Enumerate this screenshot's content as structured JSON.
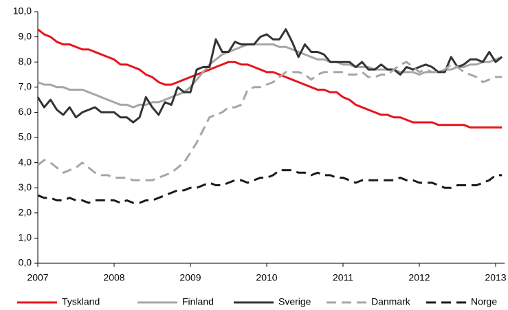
{
  "chart_data": {
    "type": "line",
    "categories": [
      "2007",
      null,
      null,
      null,
      null,
      null,
      null,
      null,
      null,
      null,
      null,
      null,
      "2008",
      null,
      null,
      null,
      null,
      null,
      null,
      null,
      null,
      null,
      null,
      null,
      "2009",
      null,
      null,
      null,
      null,
      null,
      null,
      null,
      null,
      null,
      null,
      null,
      "2010",
      null,
      null,
      null,
      null,
      null,
      null,
      null,
      null,
      null,
      null,
      null,
      "2011",
      null,
      null,
      null,
      null,
      null,
      null,
      null,
      null,
      null,
      null,
      null,
      "2012",
      null,
      null,
      null,
      null,
      null,
      null,
      null,
      null,
      null,
      null,
      null,
      "2013",
      null
    ],
    "series": [
      {
        "name": "Tyskland",
        "color": "#e8141b",
        "dashed": false,
        "values": [
          9.3,
          9.1,
          9.0,
          8.8,
          8.7,
          8.7,
          8.6,
          8.5,
          8.5,
          8.4,
          8.3,
          8.2,
          8.1,
          7.9,
          7.9,
          7.8,
          7.7,
          7.5,
          7.4,
          7.2,
          7.1,
          7.1,
          7.2,
          7.3,
          7.4,
          7.5,
          7.6,
          7.7,
          7.8,
          7.9,
          8.0,
          8.0,
          7.9,
          7.9,
          7.8,
          7.7,
          7.6,
          7.6,
          7.5,
          7.4,
          7.3,
          7.2,
          7.1,
          7.0,
          6.9,
          6.9,
          6.8,
          6.8,
          6.6,
          6.5,
          6.3,
          6.2,
          6.1,
          6.0,
          5.9,
          5.9,
          5.8,
          5.8,
          5.7,
          5.6,
          5.6,
          5.6,
          5.6,
          5.5,
          5.5,
          5.5,
          5.5,
          5.5,
          5.4,
          5.4,
          5.4,
          5.4,
          5.4,
          5.4
        ]
      },
      {
        "name": "Finland",
        "color": "#a6a6a6",
        "dashed": false,
        "values": [
          7.2,
          7.1,
          7.1,
          7.0,
          7.0,
          6.9,
          6.9,
          6.9,
          6.8,
          6.7,
          6.6,
          6.5,
          6.4,
          6.3,
          6.3,
          6.2,
          6.3,
          6.3,
          6.4,
          6.4,
          6.5,
          6.6,
          6.7,
          6.8,
          7.0,
          7.3,
          7.6,
          7.9,
          8.1,
          8.3,
          8.4,
          8.5,
          8.6,
          8.7,
          8.7,
          8.7,
          8.7,
          8.7,
          8.6,
          8.6,
          8.5,
          8.4,
          8.3,
          8.2,
          8.1,
          8.1,
          8.0,
          8.0,
          7.9,
          7.9,
          7.8,
          7.8,
          7.8,
          7.7,
          7.7,
          7.7,
          7.7,
          7.6,
          7.6,
          7.6,
          7.5,
          7.6,
          7.6,
          7.6,
          7.7,
          7.7,
          7.8,
          7.8,
          7.9,
          7.9,
          8.0,
          8.0,
          8.1,
          8.2
        ]
      },
      {
        "name": "Sverige",
        "color": "#333333",
        "dashed": false,
        "values": [
          6.6,
          6.2,
          6.5,
          6.1,
          5.9,
          6.2,
          5.8,
          6.0,
          6.1,
          6.2,
          6.0,
          6.0,
          6.0,
          5.8,
          5.8,
          5.6,
          5.8,
          6.6,
          6.2,
          5.9,
          6.4,
          6.3,
          7.0,
          6.8,
          6.8,
          7.7,
          7.8,
          7.8,
          8.9,
          8.4,
          8.4,
          8.8,
          8.7,
          8.7,
          8.7,
          9.0,
          9.1,
          8.9,
          8.9,
          9.3,
          8.8,
          8.2,
          8.7,
          8.4,
          8.4,
          8.3,
          8.0,
          8.0,
          8.0,
          8.0,
          7.8,
          8.0,
          7.7,
          7.7,
          7.9,
          7.7,
          7.7,
          7.5,
          7.8,
          7.7,
          7.8,
          7.9,
          7.8,
          7.6,
          7.6,
          8.2,
          7.8,
          7.9,
          8.1,
          8.1,
          8.0,
          8.4,
          8.0,
          8.2
        ]
      },
      {
        "name": "Danmark",
        "color": "#a6a6a6",
        "dashed": true,
        "values": [
          3.9,
          4.1,
          4.0,
          3.8,
          3.6,
          3.7,
          3.8,
          4.0,
          3.8,
          3.6,
          3.5,
          3.5,
          3.4,
          3.4,
          3.4,
          3.3,
          3.3,
          3.3,
          3.3,
          3.4,
          3.5,
          3.6,
          3.8,
          4.0,
          4.4,
          4.8,
          5.3,
          5.8,
          5.9,
          6.0,
          6.2,
          6.2,
          6.3,
          6.9,
          7.0,
          7.0,
          7.1,
          7.2,
          7.4,
          7.6,
          7.6,
          7.6,
          7.5,
          7.3,
          7.5,
          7.6,
          7.6,
          7.6,
          7.6,
          7.5,
          7.5,
          7.6,
          7.4,
          7.4,
          7.5,
          7.5,
          7.7,
          7.9,
          8.0,
          7.8,
          7.6,
          7.7,
          7.6,
          7.6,
          7.7,
          7.9,
          7.8,
          7.6,
          7.5,
          7.4,
          7.2,
          7.3,
          7.4,
          7.4
        ]
      },
      {
        "name": "Norge",
        "color": "#1a1a1a",
        "dashed": true,
        "values": [
          2.7,
          2.6,
          2.6,
          2.5,
          2.5,
          2.6,
          2.5,
          2.5,
          2.4,
          2.5,
          2.5,
          2.5,
          2.5,
          2.4,
          2.5,
          2.4,
          2.4,
          2.5,
          2.5,
          2.6,
          2.7,
          2.8,
          2.9,
          2.9,
          3.0,
          3.0,
          3.1,
          3.2,
          3.1,
          3.1,
          3.2,
          3.3,
          3.3,
          3.2,
          3.3,
          3.4,
          3.4,
          3.5,
          3.7,
          3.7,
          3.7,
          3.6,
          3.6,
          3.5,
          3.6,
          3.5,
          3.5,
          3.4,
          3.4,
          3.3,
          3.2,
          3.3,
          3.3,
          3.3,
          3.3,
          3.3,
          3.3,
          3.4,
          3.3,
          3.3,
          3.2,
          3.2,
          3.2,
          3.1,
          3.0,
          3.0,
          3.1,
          3.1,
          3.1,
          3.1,
          3.2,
          3.3,
          3.5,
          3.5
        ]
      }
    ],
    "ylim": [
      0,
      10
    ],
    "yticks": [
      {
        "value": 0,
        "label": "0,0"
      },
      {
        "value": 1,
        "label": "1,0"
      },
      {
        "value": 2,
        "label": "2,0"
      },
      {
        "value": 3,
        "label": "3,0"
      },
      {
        "value": 4,
        "label": "4,0"
      },
      {
        "value": 5,
        "label": "5,0"
      },
      {
        "value": 6,
        "label": "6,0"
      },
      {
        "value": 7,
        "label": "7,0"
      },
      {
        "value": 8,
        "label": "8,0"
      },
      {
        "value": 9,
        "label": "9,0"
      },
      {
        "value": 10,
        "label": "10,0"
      }
    ],
    "grid": false,
    "legend": "bottom"
  }
}
